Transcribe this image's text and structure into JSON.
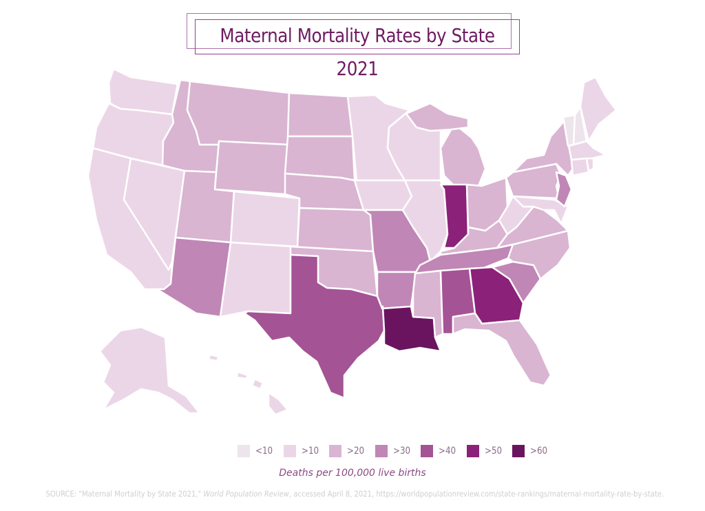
{
  "title": "Maternal Mortality Rates by State 2021",
  "colors": {
    "title": "#6e1a63",
    "frame": "#b070a6"
  },
  "legend": {
    "items": [
      {
        "label": "<10",
        "color": "#ede4ec"
      },
      {
        "label": ">10",
        "color": "#ebd6e7"
      },
      {
        "label": ">20",
        "color": "#d9b5d2"
      },
      {
        "label": ">30",
        "color": "#c086b6"
      },
      {
        "label": ">40",
        "color": "#a45395"
      },
      {
        "label": ">50",
        "color": "#8b2178"
      },
      {
        "label": ">60",
        "color": "#6a1460"
      }
    ],
    "unit": "Deaths per 100,000 live births"
  },
  "map": {
    "states": {
      "VT": "<10",
      "NH": "<10",
      "WA": ">10",
      "OR": ">10",
      "CA": ">10",
      "NV": ">10",
      "CO": ">10",
      "NM": ">10",
      "MN": ">10",
      "WI": ">10",
      "IL": ">10",
      "IA": ">10",
      "ME": ">10",
      "MA": ">10",
      "CT": ">10",
      "RI": ">10",
      "MD": ">10",
      "DE": ">10",
      "WV": ">10",
      "AK": ">10",
      "HI": ">10",
      "ID": ">20",
      "MT": ">20",
      "WY": ">20",
      "UT": ">20",
      "ND": ">20",
      "SD": ">20",
      "NE": ">20",
      "KS": ">20",
      "OK": ">20",
      "MI": ">20",
      "OH": ">20",
      "KY": ">20",
      "NY": ">20",
      "PA": ">20",
      "VA": ">20",
      "NC": ">20",
      "MS": ">20",
      "FL": ">20",
      "AZ": ">30",
      "MO": ">30",
      "AR": ">30",
      "TN": ">30",
      "SC": ">30",
      "NJ": ">30",
      "TX": ">40",
      "AL": ">40",
      "IN": ">50",
      "GA": ">50",
      "LA": ">60"
    }
  },
  "source": {
    "prefix": "SOURCE: \"Maternal Mortality by State 2021,\" ",
    "publication": "World Population Review",
    "suffix": ", accessed April 8, 2021, https://worldpopulationreview.com/state-rankings/maternal-mortality-rate-by-state."
  }
}
